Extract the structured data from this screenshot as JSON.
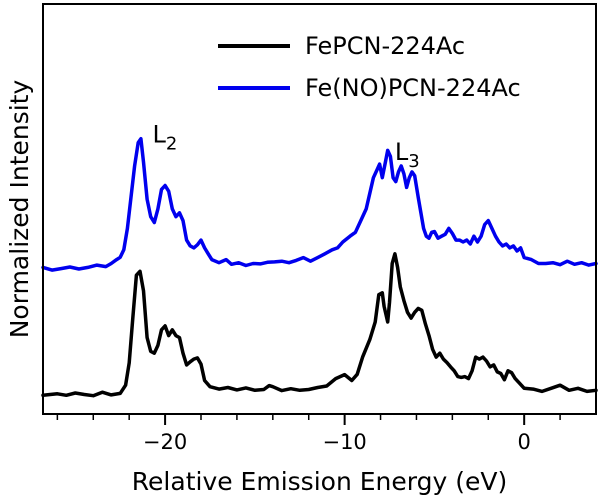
{
  "chart_data": {
    "type": "line",
    "title": "",
    "xlabel": "Relative Emission Energy (eV)",
    "ylabel": "Normalized Intensity",
    "xlim": [
      -26.8,
      4.0
    ],
    "ylim": [
      0,
      1
    ],
    "x_ticks_major": [
      -20,
      -10,
      0
    ],
    "x_tick_labels": [
      "−20",
      "−10",
      "0"
    ],
    "x_ticks_minor": [
      -26,
      -24,
      -22,
      -18,
      -16,
      -14,
      -12,
      -8,
      -6,
      -4,
      -2,
      2
    ],
    "y_ticks": [],
    "grid": false,
    "legend_position": "top-right",
    "annotations": [
      {
        "base": "L",
        "sub": "2",
        "x": -20.7,
        "y": 0.66
      },
      {
        "base": "L",
        "sub": "3",
        "x": -7.2,
        "y": 0.615
      }
    ],
    "series": [
      {
        "name": "FePCN-224Ac",
        "color": "#000000",
        "points": [
          [
            -26.8,
            0.012
          ],
          [
            -26.0,
            0.016
          ],
          [
            -25.5,
            0.012
          ],
          [
            -25.0,
            0.018
          ],
          [
            -24.5,
            0.014
          ],
          [
            -24.0,
            0.011
          ],
          [
            -23.5,
            0.02
          ],
          [
            -23.0,
            0.013
          ],
          [
            -22.5,
            0.017
          ],
          [
            -22.2,
            0.038
          ],
          [
            -22.0,
            0.095
          ],
          [
            -21.8,
            0.21
          ],
          [
            -21.6,
            0.32
          ],
          [
            -21.4,
            0.33
          ],
          [
            -21.2,
            0.28
          ],
          [
            -21.0,
            0.16
          ],
          [
            -20.8,
            0.125
          ],
          [
            -20.6,
            0.12
          ],
          [
            -20.4,
            0.14
          ],
          [
            -20.2,
            0.18
          ],
          [
            -20.0,
            0.19
          ],
          [
            -19.8,
            0.165
          ],
          [
            -19.6,
            0.18
          ],
          [
            -19.4,
            0.165
          ],
          [
            -19.2,
            0.16
          ],
          [
            -19.0,
            0.12
          ],
          [
            -18.8,
            0.09
          ],
          [
            -18.6,
            0.098
          ],
          [
            -18.4,
            0.105
          ],
          [
            -18.2,
            0.108
          ],
          [
            -18.0,
            0.092
          ],
          [
            -17.8,
            0.05
          ],
          [
            -17.5,
            0.034
          ],
          [
            -17.0,
            0.028
          ],
          [
            -16.5,
            0.032
          ],
          [
            -16.0,
            0.026
          ],
          [
            -15.5,
            0.031
          ],
          [
            -15.0,
            0.025
          ],
          [
            -14.5,
            0.027
          ],
          [
            -14.2,
            0.037
          ],
          [
            -14.0,
            0.034
          ],
          [
            -13.5,
            0.024
          ],
          [
            -13.0,
            0.029
          ],
          [
            -12.5,
            0.025
          ],
          [
            -12.0,
            0.027
          ],
          [
            -11.5,
            0.032
          ],
          [
            -11.0,
            0.036
          ],
          [
            -10.5,
            0.055
          ],
          [
            -10.0,
            0.065
          ],
          [
            -9.6,
            0.05
          ],
          [
            -9.3,
            0.066
          ],
          [
            -9.0,
            0.11
          ],
          [
            -8.6,
            0.155
          ],
          [
            -8.3,
            0.2
          ],
          [
            -8.1,
            0.27
          ],
          [
            -7.9,
            0.275
          ],
          [
            -7.8,
            0.24
          ],
          [
            -7.6,
            0.2
          ],
          [
            -7.5,
            0.25
          ],
          [
            -7.35,
            0.35
          ],
          [
            -7.2,
            0.375
          ],
          [
            -7.05,
            0.34
          ],
          [
            -6.9,
            0.29
          ],
          [
            -6.7,
            0.255
          ],
          [
            -6.5,
            0.225
          ],
          [
            -6.3,
            0.21
          ],
          [
            -6.1,
            0.225
          ],
          [
            -5.9,
            0.235
          ],
          [
            -5.7,
            0.23
          ],
          [
            -5.5,
            0.195
          ],
          [
            -5.3,
            0.165
          ],
          [
            -5.1,
            0.13
          ],
          [
            -4.9,
            0.11
          ],
          [
            -4.7,
            0.12
          ],
          [
            -4.5,
            0.105
          ],
          [
            -4.3,
            0.096
          ],
          [
            -4.1,
            0.085
          ],
          [
            -3.9,
            0.075
          ],
          [
            -3.7,
            0.06
          ],
          [
            -3.5,
            0.058
          ],
          [
            -3.3,
            0.06
          ],
          [
            -3.1,
            0.055
          ],
          [
            -2.9,
            0.075
          ],
          [
            -2.7,
            0.11
          ],
          [
            -2.5,
            0.105
          ],
          [
            -2.3,
            0.11
          ],
          [
            -2.1,
            0.1
          ],
          [
            -1.9,
            0.085
          ],
          [
            -1.7,
            0.09
          ],
          [
            -1.5,
            0.072
          ],
          [
            -1.3,
            0.068
          ],
          [
            -1.1,
            0.052
          ],
          [
            -0.9,
            0.075
          ],
          [
            -0.7,
            0.07
          ],
          [
            -0.5,
            0.055
          ],
          [
            -0.3,
            0.045
          ],
          [
            0.0,
            0.03
          ],
          [
            0.5,
            0.028
          ],
          [
            1.0,
            0.022
          ],
          [
            1.5,
            0.03
          ],
          [
            2.0,
            0.038
          ],
          [
            2.5,
            0.025
          ],
          [
            3.0,
            0.03
          ],
          [
            3.5,
            0.022
          ],
          [
            4.0,
            0.025
          ]
        ]
      },
      {
        "name": "Fe(NO)PCN-224Ac",
        "color": "#0000ee",
        "points": [
          [
            -26.8,
            0.34
          ],
          [
            -26.3,
            0.333
          ],
          [
            -25.8,
            0.337
          ],
          [
            -25.3,
            0.341
          ],
          [
            -24.8,
            0.336
          ],
          [
            -24.3,
            0.34
          ],
          [
            -23.8,
            0.346
          ],
          [
            -23.3,
            0.342
          ],
          [
            -23.0,
            0.35
          ],
          [
            -22.7,
            0.36
          ],
          [
            -22.5,
            0.366
          ],
          [
            -22.3,
            0.385
          ],
          [
            -22.1,
            0.44
          ],
          [
            -21.9,
            0.52
          ],
          [
            -21.7,
            0.6
          ],
          [
            -21.5,
            0.66
          ],
          [
            -21.35,
            0.67
          ],
          [
            -21.2,
            0.61
          ],
          [
            -21.0,
            0.515
          ],
          [
            -20.8,
            0.47
          ],
          [
            -20.6,
            0.455
          ],
          [
            -20.4,
            0.49
          ],
          [
            -20.2,
            0.54
          ],
          [
            -20.0,
            0.55
          ],
          [
            -19.8,
            0.535
          ],
          [
            -19.6,
            0.49
          ],
          [
            -19.4,
            0.47
          ],
          [
            -19.2,
            0.48
          ],
          [
            -19.0,
            0.46
          ],
          [
            -18.8,
            0.41
          ],
          [
            -18.6,
            0.395
          ],
          [
            -18.4,
            0.39
          ],
          [
            -18.2,
            0.398
          ],
          [
            -18.0,
            0.41
          ],
          [
            -17.8,
            0.39
          ],
          [
            -17.6,
            0.375
          ],
          [
            -17.4,
            0.36
          ],
          [
            -17.0,
            0.352
          ],
          [
            -16.6,
            0.36
          ],
          [
            -16.3,
            0.348
          ],
          [
            -15.9,
            0.352
          ],
          [
            -15.5,
            0.345
          ],
          [
            -15.1,
            0.35
          ],
          [
            -14.7,
            0.349
          ],
          [
            -14.3,
            0.353
          ],
          [
            -13.9,
            0.354
          ],
          [
            -13.5,
            0.356
          ],
          [
            -13.1,
            0.352
          ],
          [
            -12.7,
            0.358
          ],
          [
            -12.3,
            0.365
          ],
          [
            -11.9,
            0.356
          ],
          [
            -11.5,
            0.365
          ],
          [
            -11.1,
            0.375
          ],
          [
            -10.7,
            0.385
          ],
          [
            -10.4,
            0.39
          ],
          [
            -10.1,
            0.405
          ],
          [
            -9.7,
            0.42
          ],
          [
            -9.4,
            0.43
          ],
          [
            -9.1,
            0.46
          ],
          [
            -8.8,
            0.49
          ],
          [
            -8.6,
            0.53
          ],
          [
            -8.4,
            0.57
          ],
          [
            -8.2,
            0.59
          ],
          [
            -8.05,
            0.605
          ],
          [
            -7.9,
            0.57
          ],
          [
            -7.75,
            0.605
          ],
          [
            -7.6,
            0.64
          ],
          [
            -7.45,
            0.625
          ],
          [
            -7.3,
            0.57
          ],
          [
            -7.15,
            0.56
          ],
          [
            -7.0,
            0.585
          ],
          [
            -6.85,
            0.6
          ],
          [
            -6.7,
            0.58
          ],
          [
            -6.55,
            0.545
          ],
          [
            -6.4,
            0.57
          ],
          [
            -6.25,
            0.585
          ],
          [
            -6.1,
            0.575
          ],
          [
            -5.9,
            0.52
          ],
          [
            -5.75,
            0.48
          ],
          [
            -5.6,
            0.44
          ],
          [
            -5.45,
            0.42
          ],
          [
            -5.3,
            0.415
          ],
          [
            -5.15,
            0.43
          ],
          [
            -5.0,
            0.432
          ],
          [
            -4.8,
            0.415
          ],
          [
            -4.6,
            0.42
          ],
          [
            -4.4,
            0.425
          ],
          [
            -4.2,
            0.44
          ],
          [
            -4.0,
            0.427
          ],
          [
            -3.8,
            0.41
          ],
          [
            -3.6,
            0.41
          ],
          [
            -3.4,
            0.405
          ],
          [
            -3.2,
            0.41
          ],
          [
            -3.0,
            0.4
          ],
          [
            -2.8,
            0.42
          ],
          [
            -2.6,
            0.405
          ],
          [
            -2.4,
            0.42
          ],
          [
            -2.2,
            0.45
          ],
          [
            -2.0,
            0.46
          ],
          [
            -1.8,
            0.44
          ],
          [
            -1.6,
            0.42
          ],
          [
            -1.4,
            0.405
          ],
          [
            -1.2,
            0.395
          ],
          [
            -1.0,
            0.4
          ],
          [
            -0.8,
            0.39
          ],
          [
            -0.6,
            0.395
          ],
          [
            -0.4,
            0.382
          ],
          [
            -0.2,
            0.39
          ],
          [
            0.0,
            0.365
          ],
          [
            0.4,
            0.36
          ],
          [
            0.8,
            0.35
          ],
          [
            1.2,
            0.35
          ],
          [
            1.6,
            0.352
          ],
          [
            2.0,
            0.347
          ],
          [
            2.4,
            0.356
          ],
          [
            2.8,
            0.348
          ],
          [
            3.2,
            0.352
          ],
          [
            3.6,
            0.346
          ],
          [
            4.0,
            0.35
          ]
        ]
      }
    ]
  }
}
